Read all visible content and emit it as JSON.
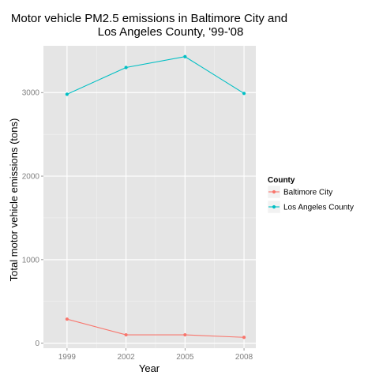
{
  "chart_data": {
    "type": "line",
    "title_lines": [
      "Motor vehicle PM2.5 emissions in Baltimore City and",
      "Los Angeles County, '99-'08"
    ],
    "xlabel": "Year",
    "ylabel": "Total motor vehicle emissions (tons)",
    "x": [
      1999,
      2002,
      2005,
      2008
    ],
    "x_ticks": [
      "1999",
      "2002",
      "2005",
      "2008"
    ],
    "y_ticks": [
      0,
      1000,
      2000,
      3000
    ],
    "ylim": [
      -60,
      3560
    ],
    "grid": true,
    "legend": {
      "title": "County",
      "placement": "right"
    },
    "series": [
      {
        "name": "Baltimore City",
        "color": "#F8766D",
        "values": [
          {
            "x": 1999,
            "y": 288
          },
          {
            "x": 2002,
            "y": 100
          },
          {
            "x": 2005,
            "y": 100
          },
          {
            "x": 2008,
            "y": 70
          }
        ]
      },
      {
        "name": "Los Angeles County",
        "color": "#00BFC4",
        "values": [
          {
            "x": 1999,
            "y": 2980
          },
          {
            "x": 2002,
            "y": 3300
          },
          {
            "x": 2005,
            "y": 3430
          },
          {
            "x": 2008,
            "y": 2990
          }
        ]
      }
    ]
  }
}
